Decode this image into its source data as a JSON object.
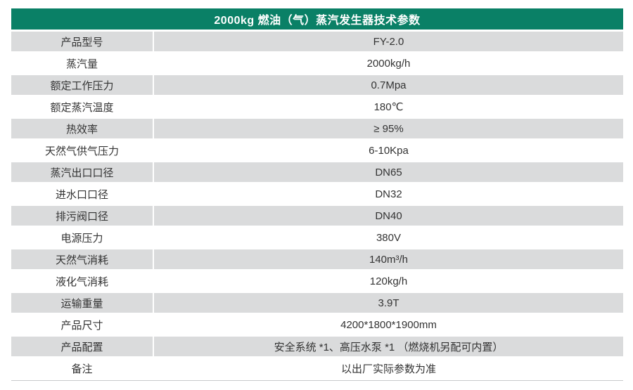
{
  "table": {
    "title": "2000kg 燃油（气）蒸汽发生器技术参数",
    "rows": [
      {
        "label": "产品型号",
        "value": "FY-2.0"
      },
      {
        "label": "蒸汽量",
        "value": "2000kg/h"
      },
      {
        "label": "额定工作压力",
        "value": "0.7Mpa"
      },
      {
        "label": "额定蒸汽温度",
        "value": "180℃"
      },
      {
        "label": "热效率",
        "value": "≥ 95%"
      },
      {
        "label": "天然气供气压力",
        "value": "6-10Kpa"
      },
      {
        "label": "蒸汽出口口径",
        "value": "DN65"
      },
      {
        "label": "进水口口径",
        "value": "DN32"
      },
      {
        "label": "排污阀口径",
        "value": "DN40"
      },
      {
        "label": "电源压力",
        "value": "380V"
      },
      {
        "label": "天然气消耗",
        "value": "140m³/h"
      },
      {
        "label": "液化气消耗",
        "value": "120kg/h"
      },
      {
        "label": "运输重量",
        "value": "3.9T"
      },
      {
        "label": "产品尺寸",
        "value": "4200*1800*1900mm"
      },
      {
        "label": "产品配置",
        "value": "安全系统 *1、高压水泵 *1 （燃烧机另配可内置）"
      },
      {
        "label": "备注",
        "value": "以出厂实际参数为准"
      }
    ]
  },
  "colors": {
    "header_bg": "#0a8066",
    "header_text": "#ffffff",
    "alt_row_bg": "#dadbdc",
    "cell_text": "#333333",
    "bottom_rule": "#c9cacb"
  }
}
